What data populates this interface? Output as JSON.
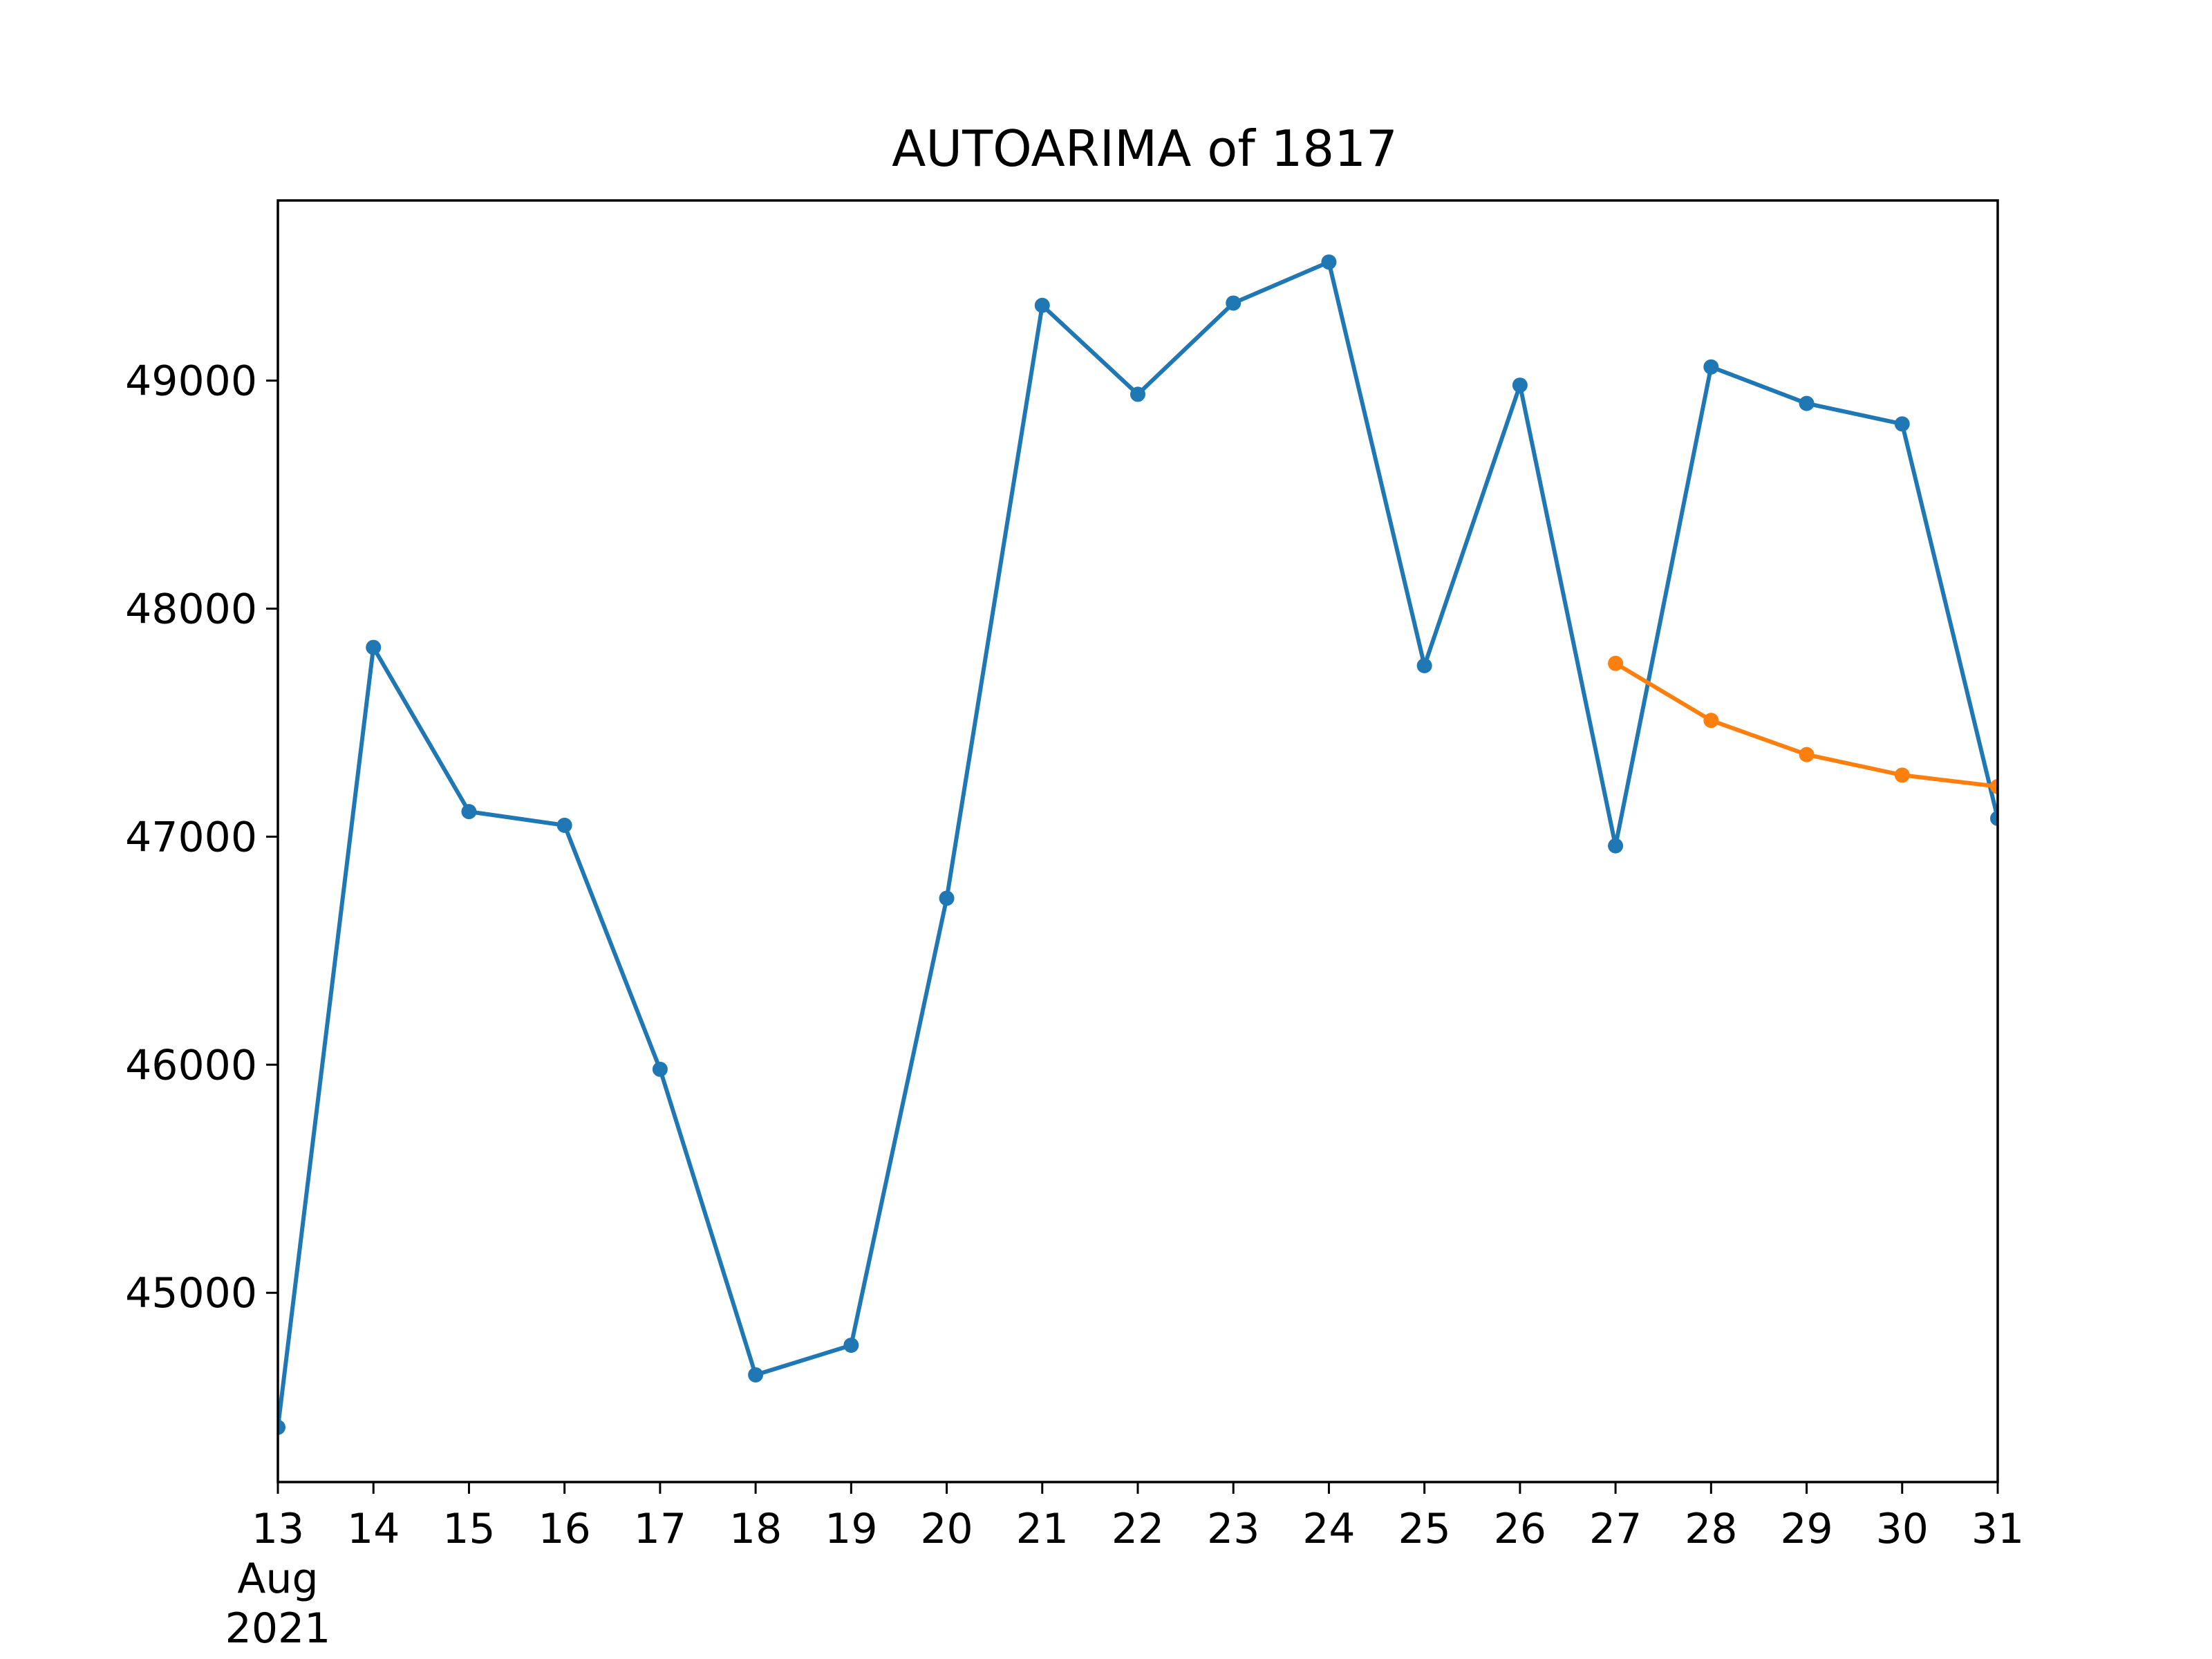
{
  "chart_data": {
    "type": "line",
    "title": "AUTOARIMA of 1817",
    "xlabel": "",
    "ylabel": "",
    "x_ticks": [
      {
        "day": 13,
        "label": "13",
        "sub": [
          "Aug",
          "2021"
        ]
      },
      {
        "day": 14,
        "label": "14"
      },
      {
        "day": 15,
        "label": "15"
      },
      {
        "day": 16,
        "label": "16"
      },
      {
        "day": 17,
        "label": "17"
      },
      {
        "day": 18,
        "label": "18"
      },
      {
        "day": 19,
        "label": "19"
      },
      {
        "day": 20,
        "label": "20"
      },
      {
        "day": 21,
        "label": "21"
      },
      {
        "day": 22,
        "label": "22"
      },
      {
        "day": 23,
        "label": "23"
      },
      {
        "day": 24,
        "label": "24"
      },
      {
        "day": 25,
        "label": "25"
      },
      {
        "day": 26,
        "label": "26"
      },
      {
        "day": 27,
        "label": "27"
      },
      {
        "day": 28,
        "label": "28"
      },
      {
        "day": 29,
        "label": "29"
      },
      {
        "day": 30,
        "label": "30"
      },
      {
        "day": 31,
        "label": "31"
      }
    ],
    "y_ticks": [
      45000,
      46000,
      47000,
      48000,
      49000
    ],
    "xlim": [
      13,
      31
    ],
    "ylim": [
      44170,
      49790
    ],
    "grid": false,
    "series": [
      {
        "color": "#1f77b4",
        "points": [
          [
            13,
            44410
          ],
          [
            14,
            47830
          ],
          [
            15,
            47110
          ],
          [
            16,
            47050
          ],
          [
            17,
            45980
          ],
          [
            18,
            44640
          ],
          [
            19,
            44770
          ],
          [
            20,
            46730
          ],
          [
            21,
            49330
          ],
          [
            22,
            48940
          ],
          [
            23,
            49340
          ],
          [
            24,
            49520
          ],
          [
            25,
            47750
          ],
          [
            26,
            48980
          ],
          [
            27,
            46960
          ],
          [
            28,
            49060
          ],
          [
            29,
            48900
          ],
          [
            30,
            48810
          ],
          [
            31,
            47080
          ]
        ]
      },
      {
        "color": "#ff7f0e",
        "points": [
          [
            27,
            47760
          ],
          [
            28,
            47510
          ],
          [
            29,
            47360
          ],
          [
            30,
            47270
          ],
          [
            31,
            47220
          ]
        ]
      }
    ]
  }
}
